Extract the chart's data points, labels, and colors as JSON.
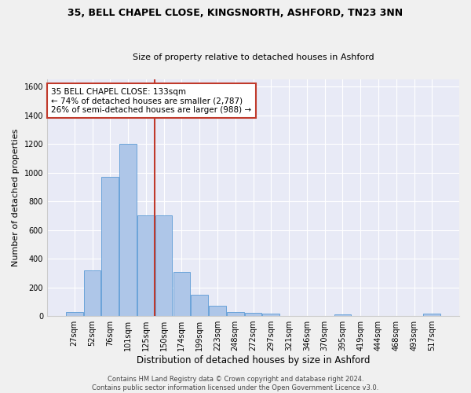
{
  "title": "35, BELL CHAPEL CLOSE, KINGSNORTH, ASHFORD, TN23 3NN",
  "subtitle": "Size of property relative to detached houses in Ashford",
  "xlabel": "Distribution of detached houses by size in Ashford",
  "ylabel": "Number of detached properties",
  "categories": [
    "27sqm",
    "52sqm",
    "76sqm",
    "101sqm",
    "125sqm",
    "150sqm",
    "174sqm",
    "199sqm",
    "223sqm",
    "248sqm",
    "272sqm",
    "297sqm",
    "321sqm",
    "346sqm",
    "370sqm",
    "395sqm",
    "419sqm",
    "444sqm",
    "468sqm",
    "493sqm",
    "517sqm"
  ],
  "values": [
    30,
    320,
    970,
    1200,
    700,
    700,
    305,
    150,
    70,
    30,
    20,
    15,
    0,
    0,
    0,
    10,
    0,
    0,
    0,
    0,
    15
  ],
  "bar_color": "#aec6e8",
  "bar_edge_color": "#5b9bd5",
  "background_color": "#e8eaf6",
  "grid_color": "#ffffff",
  "vline_x_idx": 4,
  "vline_color": "#c0392b",
  "annotation_text": "35 BELL CHAPEL CLOSE: 133sqm\n← 74% of detached houses are smaller (2,787)\n26% of semi-detached houses are larger (988) →",
  "annotation_box_facecolor": "#ffffff",
  "annotation_box_edgecolor": "#c0392b",
  "ylim": [
    0,
    1650
  ],
  "yticks": [
    0,
    200,
    400,
    600,
    800,
    1000,
    1200,
    1400,
    1600
  ],
  "fig_facecolor": "#f0f0f0",
  "title_fontsize": 9,
  "subtitle_fontsize": 8,
  "footer1": "Contains HM Land Registry data © Crown copyright and database right 2024.",
  "footer2": "Contains public sector information licensed under the Open Government Licence v3.0."
}
